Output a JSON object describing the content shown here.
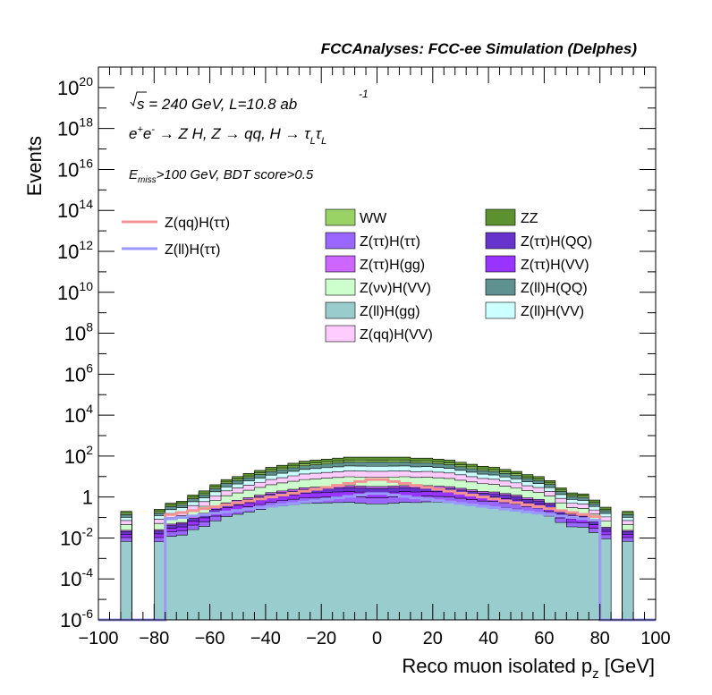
{
  "header": {
    "title": "FCCAnalyses: FCC-ee Simulation (Delphes)"
  },
  "annotations": {
    "sqrt_s": "s = 240 GeV, L=10.8 ab",
    "lumi_exp": "-1",
    "process": "e⁺e⁻ → Z H, Z → qq, H → τ_L τ_L",
    "process_parts": [
      "e",
      "+",
      "e",
      "-",
      " → Z H, Z  → qq, H  → τ",
      "L",
      "τ",
      "L"
    ],
    "cut_E": "E",
    "cut_sub": "miss",
    "cut_rest": ">100 GeV, BDT score>0.5"
  },
  "chart_data": {
    "type": "histogram",
    "title": "",
    "xlabel": "Reco muon isolated p",
    "xlabel_sub": "z",
    "xlabel_unit": " [GeV]",
    "ylabel": "Events",
    "xlim": [
      -100,
      100
    ],
    "ylim": [
      1e-06,
      1e+21
    ],
    "yscale": "log",
    "x_ticks": [
      "−100",
      "−80",
      "−60",
      "−40",
      "−20",
      "0",
      "20",
      "40",
      "60",
      "80",
      "100"
    ],
    "y_ticks": [
      {
        "base": "10",
        "exp": "-6"
      },
      {
        "base": "10",
        "exp": "-4"
      },
      {
        "base": "10",
        "exp": "-2"
      },
      {
        "base": "1",
        "exp": ""
      },
      {
        "base": "10",
        "exp": "2"
      },
      {
        "base": "10",
        "exp": "4"
      },
      {
        "base": "10",
        "exp": "6"
      },
      {
        "base": "10",
        "exp": "8"
      },
      {
        "base": "10",
        "exp": "10"
      },
      {
        "base": "10",
        "exp": "12"
      },
      {
        "base": "10",
        "exp": "14"
      },
      {
        "base": "10",
        "exp": "16"
      },
      {
        "base": "10",
        "exp": "18"
      },
      {
        "base": "10",
        "exp": "20"
      }
    ],
    "bin_edges_desc": "50 bins of 4 GeV from -100 to 100",
    "stack_top_log10": [
      -6,
      -6,
      -0.7,
      -6,
      -6,
      -0.6,
      -0.3,
      -0.2,
      0.1,
      0.3,
      0.6,
      0.85,
      1,
      1.15,
      1.3,
      1.45,
      1.55,
      1.65,
      1.75,
      1.8,
      1.85,
      1.9,
      1.95,
      1.95,
      1.95,
      1.95,
      1.95,
      1.95,
      1.9,
      1.9,
      1.85,
      1.8,
      1.7,
      1.6,
      1.5,
      1.45,
      1.35,
      1.25,
      1.1,
      1.0,
      0.8,
      0.45,
      0.2,
      0.15,
      -0.15,
      -0.5,
      -6,
      -0.7,
      -6,
      -6
    ],
    "stack_order": [
      "Z(ll)H(gg)",
      "Z(ττ)H(ττ)",
      "Z(ττ)H(VV)",
      "Z(ττ)H(QQ)",
      "Z(ττ)H(gg)",
      "Z(νν)H(VV)",
      "Z(qq)H(VV)",
      "Z(ll)H(VV)",
      "Z(ll)H(QQ)",
      "WW",
      "ZZ"
    ],
    "stacked_series": [
      {
        "name": "WW",
        "color": "#99d366"
      },
      {
        "name": "ZZ",
        "color": "#5d902f"
      },
      {
        "name": "Z(ττ)H(ττ)",
        "color": "#9966ff"
      },
      {
        "name": "Z(ττ)H(QQ)",
        "color": "#6633cc"
      },
      {
        "name": "Z(ττ)H(gg)",
        "color": "#cc66ff"
      },
      {
        "name": "Z(ττ)H(VV)",
        "color": "#9933ff"
      },
      {
        "name": "Z(νν)H(VV)",
        "color": "#ccffcc"
      },
      {
        "name": "Z(ll)H(QQ)",
        "color": "#5f9191"
      },
      {
        "name": "Z(ll)H(gg)",
        "color": "#99cccc"
      },
      {
        "name": "Z(ll)H(VV)",
        "color": "#ccffff"
      },
      {
        "name": "Z(qq)H(VV)",
        "color": "#ffccff"
      }
    ],
    "line_series": [
      {
        "name": "Z(qq)H(ττ)",
        "color": "#f49393"
      },
      {
        "name": "Z(ll)H(ττ)",
        "color": "#9999ff"
      }
    ],
    "legend_placement": "top-center"
  }
}
